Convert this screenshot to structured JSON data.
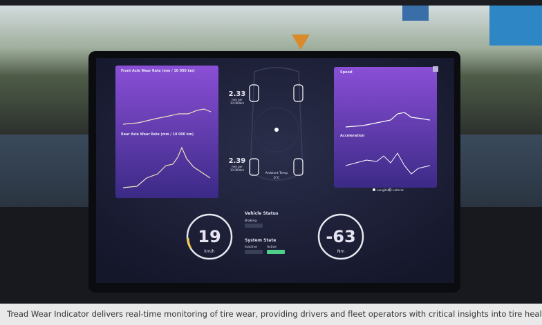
{
  "screen": {
    "front_axle": {
      "title": "Front Axle Wear Rate (mm / 10 000 km)",
      "value": 2.33,
      "unit_line1": "mm per",
      "unit_line2": "10 000km"
    },
    "rear_axle": {
      "title": "Rear Axle Wear Rate (mm / 10 000 km)",
      "value": 2.39,
      "unit_line1": "mm per",
      "unit_line2": "10 000km"
    },
    "ambient": {
      "label": "Ambient Temp",
      "value": "6°C"
    },
    "speed_chart": {
      "title": "Speed"
    },
    "acceleration_chart": {
      "title": "Acceleration",
      "legend": [
        "Longitud.",
        "Lateral"
      ]
    },
    "vehicle_status": {
      "title": "Vehicle Status",
      "item": "Braking"
    },
    "system_state": {
      "title": "System State",
      "items": [
        "Inactive",
        "Active"
      ]
    },
    "speed_gauge": {
      "value": 19,
      "unit": "km/h"
    },
    "torque_gauge": {
      "value": -63,
      "unit": "Nm"
    }
  },
  "caption": "Tread Wear Indicator delivers real-time monitoring of tire wear, providing drivers and fleet operators with critical insights into tire health."
}
